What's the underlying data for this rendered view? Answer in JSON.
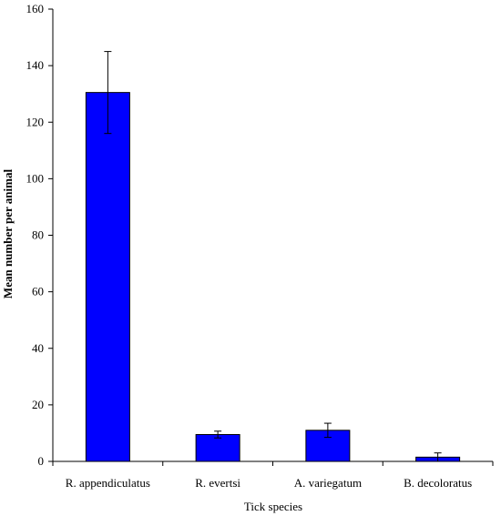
{
  "chart_data": {
    "type": "bar",
    "title": "",
    "xlabel": "Tick species",
    "ylabel": "Mean number per animal",
    "categories": [
      "R. appendiculatus",
      "R. evertsi",
      "A. variegatum",
      "B. decoloratus"
    ],
    "values": [
      130.5,
      9.5,
      11,
      1.5
    ],
    "error": [
      14.5,
      1.2,
      2.5,
      1.5
    ],
    "ylim": [
      0,
      160
    ],
    "yticks": [
      0,
      20,
      40,
      60,
      80,
      100,
      120,
      140,
      160
    ],
    "grid": false,
    "legend": "none",
    "colors": {
      "bar": "#0000ff",
      "bar_stroke": "#000000",
      "axis": "#000000"
    }
  }
}
